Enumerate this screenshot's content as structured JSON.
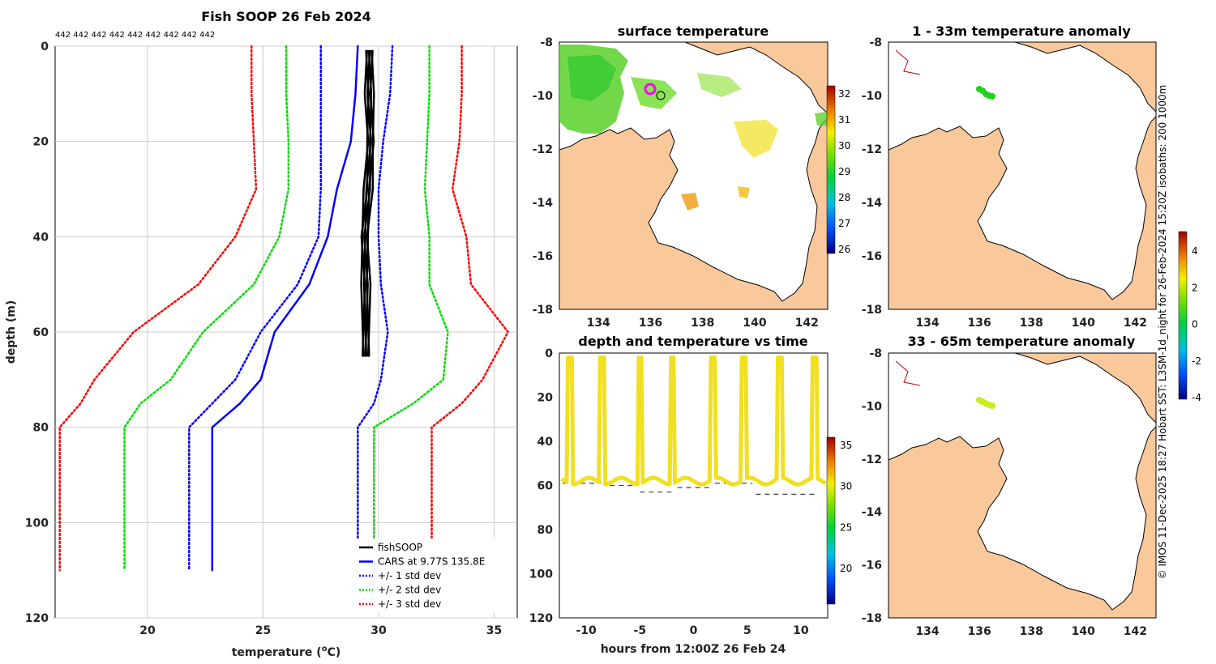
{
  "chart_data": [
    {
      "type": "line",
      "title": "Fish SOOP 26 Feb 2024",
      "top_label": "442 442 442 442 442 442 442 442 442",
      "xlabel": "temperature (",
      "xlabel_sup": "o",
      "xlabel_end": "C)",
      "ylabel": "depth (m)",
      "xlim": [
        16,
        36
      ],
      "ylim": [
        120,
        0
      ],
      "xticks": [
        20,
        25,
        30,
        35
      ],
      "yticks": [
        0,
        20,
        40,
        60,
        80,
        100,
        120
      ],
      "x_tick_labels": [
        "20",
        "25",
        "30",
        "35"
      ],
      "y_tick_labels": [
        "0",
        "20",
        "40",
        "60",
        "80",
        "100",
        "120"
      ],
      "depth": [
        0,
        10,
        20,
        30,
        40,
        50,
        60,
        70,
        75,
        80,
        110
      ],
      "series": [
        {
          "name": "fishSOOP",
          "color": "#000000",
          "style": "solid",
          "temps": [
            29.6,
            29.6,
            29.65,
            29.55,
            29.4,
            29.45,
            29.45
          ],
          "depths": [
            1,
            10,
            20,
            30,
            40,
            50,
            65
          ]
        },
        {
          "name": "CARS at 9.77S 135.8E",
          "color": "#0000ff",
          "style": "solid",
          "values": [
            29.1,
            29.0,
            28.8,
            28.2,
            27.8,
            27.0,
            25.5,
            24.9,
            24.0,
            22.8,
            22.8
          ]
        },
        {
          "name": "+/- 1 std dev",
          "color": "#0000ff",
          "style": "dotted",
          "low": [
            27.5,
            27.5,
            27.5,
            27.5,
            27.4,
            26.5,
            24.9,
            23.8,
            22.8,
            21.8,
            21.8
          ],
          "high": [
            30.6,
            30.5,
            30.2,
            30.0,
            30.0,
            30.1,
            30.4,
            30.1,
            29.8,
            29.1,
            29.1
          ]
        },
        {
          "name": "+/- 2 std dev",
          "color": "#00dd00",
          "style": "dotted",
          "low": [
            26.0,
            26.0,
            26.1,
            26.1,
            25.7,
            24.6,
            22.4,
            21.0,
            19.7,
            19.0,
            19.0
          ],
          "high": [
            32.2,
            32.2,
            32.1,
            32.0,
            32.2,
            32.2,
            33.0,
            32.8,
            31.5,
            29.8,
            29.8
          ]
        },
        {
          "name": "+/- 3 std dev",
          "color": "#ff0000",
          "style": "dotted",
          "low": [
            24.5,
            24.5,
            24.6,
            24.7,
            23.8,
            22.2,
            19.4,
            17.7,
            17.1,
            16.2,
            16.2
          ],
          "high": [
            33.6,
            33.6,
            33.5,
            33.2,
            33.8,
            34.0,
            35.6,
            34.5,
            33.6,
            32.3,
            32.3
          ]
        }
      ]
    },
    {
      "type": "heatmap",
      "title": "surface temperature",
      "x_tick_labels": [
        "134",
        "136",
        "138",
        "140",
        "142"
      ],
      "y_tick_labels": [
        "-8",
        "-10",
        "-12",
        "-14",
        "-16",
        "-18"
      ],
      "colorbar_labels": [
        "32",
        "31",
        "30",
        "29",
        "28",
        "27",
        "26"
      ]
    },
    {
      "type": "heatmap",
      "title": "1 - 33m temperature anomaly",
      "x_tick_labels": [
        "134",
        "136",
        "138",
        "140",
        "142"
      ],
      "y_tick_labels": [
        "-8",
        "-10",
        "-12",
        "-14",
        "-16",
        "-18"
      ]
    },
    {
      "type": "scatter",
      "title": "depth and temperature vs time",
      "xlabel": "hours from 12:00Z 26 Feb 24",
      "x_tick_labels": [
        "-10",
        "-5",
        "0",
        "5",
        "10"
      ],
      "y_tick_labels": [
        "0",
        "20",
        "40",
        "60",
        "80",
        "100",
        "120"
      ],
      "colorbar_labels": [
        "35",
        "30",
        "25",
        "20"
      ],
      "xlim": [
        -12.5,
        12.5
      ],
      "ylim": [
        120,
        0
      ],
      "profiles": [
        -11.5,
        -8.5,
        -5.0,
        -2.0,
        1.8,
        4.7,
        8.0,
        11.3
      ]
    },
    {
      "type": "heatmap",
      "title": "33 - 65m temperature anomaly",
      "x_tick_labels": [
        "134",
        "136",
        "138",
        "140",
        "142"
      ],
      "y_tick_labels": [
        "-8",
        "-10",
        "-12",
        "-14",
        "-16",
        "-18"
      ],
      "colorbar_labels": [
        "4",
        "2",
        "0",
        "-2",
        "-4"
      ]
    }
  ],
  "side_note": "© IMOS 11-Dec-2025 18:27 Hobart SST: L3SM-1d_night for 26-Feb-2024 15:20Z isobaths: 200  1000m"
}
